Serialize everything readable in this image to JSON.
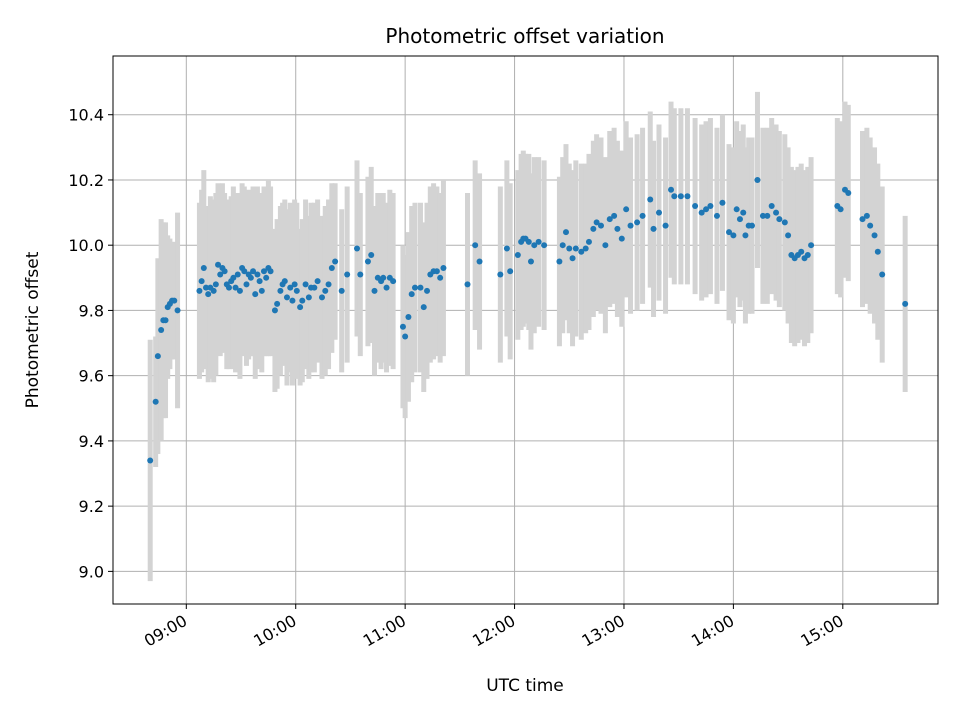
{
  "chart_data": {
    "type": "scatter",
    "title": "Photometric offset variation",
    "xlabel": "UTC time",
    "ylabel": "Photometric offset",
    "x_unit": "hours (UTC)",
    "xlim": [
      8.33,
      15.87
    ],
    "ylim": [
      8.9,
      10.58
    ],
    "grid": true,
    "x_ticks": [
      {
        "value": 9,
        "label": "09:00"
      },
      {
        "value": 10,
        "label": "10:00"
      },
      {
        "value": 11,
        "label": "11:00"
      },
      {
        "value": 12,
        "label": "12:00"
      },
      {
        "value": 13,
        "label": "13:00"
      },
      {
        "value": 14,
        "label": "14:00"
      },
      {
        "value": 15,
        "label": "15:00"
      }
    ],
    "y_ticks": [
      {
        "value": 9.0,
        "label": "9.0"
      },
      {
        "value": 9.2,
        "label": "9.2"
      },
      {
        "value": 9.4,
        "label": "9.4"
      },
      {
        "value": 9.6,
        "label": "9.6"
      },
      {
        "value": 9.8,
        "label": "9.8"
      },
      {
        "value": 10.0,
        "label": "10.0"
      },
      {
        "value": 10.2,
        "label": "10.2"
      },
      {
        "value": 10.4,
        "label": "10.4"
      }
    ],
    "point_color": "#1f77b4",
    "errorbar_color": "#d3d3d3",
    "points": [
      [
        8.67,
        9.34,
        0.37
      ],
      [
        8.72,
        9.52,
        0.2
      ],
      [
        8.74,
        9.66,
        0.3
      ],
      [
        8.77,
        9.74,
        0.34
      ],
      [
        8.79,
        9.77,
        0.3
      ],
      [
        8.81,
        9.77,
        0.3
      ],
      [
        8.83,
        9.81,
        0.22
      ],
      [
        8.85,
        9.82,
        0.2
      ],
      [
        8.87,
        9.83,
        0.18
      ],
      [
        8.89,
        9.83,
        0.18
      ],
      [
        8.92,
        9.8,
        0.3
      ],
      [
        9.12,
        9.86,
        0.27
      ],
      [
        9.14,
        9.89,
        0.28
      ],
      [
        9.16,
        9.93,
        0.3
      ],
      [
        9.18,
        9.87,
        0.25
      ],
      [
        9.2,
        9.85,
        0.27
      ],
      [
        9.22,
        9.87,
        0.28
      ],
      [
        9.25,
        9.86,
        0.28
      ],
      [
        9.27,
        9.88,
        0.28
      ],
      [
        9.29,
        9.94,
        0.25
      ],
      [
        9.31,
        9.91,
        0.25
      ],
      [
        9.33,
        9.93,
        0.26
      ],
      [
        9.35,
        9.92,
        0.24
      ],
      [
        9.37,
        9.88,
        0.26
      ],
      [
        9.39,
        9.87,
        0.25
      ],
      [
        9.41,
        9.89,
        0.26
      ],
      [
        9.43,
        9.9,
        0.28
      ],
      [
        9.45,
        9.87,
        0.26
      ],
      [
        9.47,
        9.91,
        0.25
      ],
      [
        9.49,
        9.86,
        0.27
      ],
      [
        9.51,
        9.93,
        0.26
      ],
      [
        9.53,
        9.92,
        0.26
      ],
      [
        9.55,
        9.88,
        0.25
      ],
      [
        9.57,
        9.91,
        0.26
      ],
      [
        9.59,
        9.9,
        0.24
      ],
      [
        9.61,
        9.92,
        0.26
      ],
      [
        9.63,
        9.85,
        0.26
      ],
      [
        9.65,
        9.91,
        0.27
      ],
      [
        9.67,
        9.89,
        0.27
      ],
      [
        9.69,
        9.86,
        0.25
      ],
      [
        9.71,
        9.92,
        0.26
      ],
      [
        9.73,
        9.9,
        0.24
      ],
      [
        9.75,
        9.93,
        0.27
      ],
      [
        9.77,
        9.92,
        0.26
      ],
      [
        9.81,
        9.8,
        0.25
      ],
      [
        9.83,
        9.82,
        0.26
      ],
      [
        9.86,
        9.86,
        0.26
      ],
      [
        9.88,
        9.88,
        0.25
      ],
      [
        9.9,
        9.89,
        0.25
      ],
      [
        9.92,
        9.84,
        0.27
      ],
      [
        9.95,
        9.87,
        0.26
      ],
      [
        9.97,
        9.83,
        0.26
      ],
      [
        9.99,
        9.88,
        0.26
      ],
      [
        10.01,
        9.86,
        0.27
      ],
      [
        10.04,
        9.81,
        0.24
      ],
      [
        10.06,
        9.83,
        0.25
      ],
      [
        10.09,
        9.88,
        0.26
      ],
      [
        10.12,
        9.84,
        0.25
      ],
      [
        10.14,
        9.87,
        0.26
      ],
      [
        10.17,
        9.87,
        0.26
      ],
      [
        10.2,
        9.89,
        0.25
      ],
      [
        10.24,
        9.84,
        0.25
      ],
      [
        10.27,
        9.86,
        0.26
      ],
      [
        10.3,
        9.88,
        0.26
      ],
      [
        10.33,
        9.93,
        0.26
      ],
      [
        10.36,
        9.95,
        0.24
      ],
      [
        10.42,
        9.86,
        0.25
      ],
      [
        10.47,
        9.91,
        0.27
      ],
      [
        10.56,
        9.99,
        0.27
      ],
      [
        10.59,
        9.91,
        0.25
      ],
      [
        10.66,
        9.95,
        0.26
      ],
      [
        10.69,
        9.97,
        0.27
      ],
      [
        10.72,
        9.86,
        0.26
      ],
      [
        10.75,
        9.9,
        0.26
      ],
      [
        10.78,
        9.89,
        0.27
      ],
      [
        10.8,
        9.9,
        0.26
      ],
      [
        10.83,
        9.87,
        0.26
      ],
      [
        10.86,
        9.9,
        0.27
      ],
      [
        10.89,
        9.89,
        0.27
      ],
      [
        10.98,
        9.75,
        0.25
      ],
      [
        11.0,
        9.72,
        0.25
      ],
      [
        11.03,
        9.78,
        0.26
      ],
      [
        11.06,
        9.85,
        0.27
      ],
      [
        11.09,
        9.87,
        0.26
      ],
      [
        11.14,
        9.87,
        0.26
      ],
      [
        11.17,
        9.81,
        0.26
      ],
      [
        11.2,
        9.86,
        0.27
      ],
      [
        11.23,
        9.91,
        0.27
      ],
      [
        11.26,
        9.92,
        0.27
      ],
      [
        11.29,
        9.92,
        0.26
      ],
      [
        11.32,
        9.9,
        0.26
      ],
      [
        11.35,
        9.93,
        0.27
      ],
      [
        11.57,
        9.88,
        0.28
      ],
      [
        11.64,
        10.0,
        0.26
      ],
      [
        11.68,
        9.95,
        0.27
      ],
      [
        11.87,
        9.91,
        0.27
      ],
      [
        11.93,
        9.99,
        0.27
      ],
      [
        11.96,
        9.92,
        0.27
      ],
      [
        12.03,
        9.97,
        0.26
      ],
      [
        12.06,
        10.01,
        0.27
      ],
      [
        12.08,
        10.02,
        0.27
      ],
      [
        12.1,
        10.02,
        0.26
      ],
      [
        12.13,
        10.01,
        0.27
      ],
      [
        12.15,
        9.95,
        0.27
      ],
      [
        12.18,
        10.0,
        0.27
      ],
      [
        12.22,
        10.01,
        0.26
      ],
      [
        12.27,
        10.0,
        0.26
      ],
      [
        12.41,
        9.95,
        0.26
      ],
      [
        12.44,
        10.0,
        0.27
      ],
      [
        12.47,
        10.04,
        0.27
      ],
      [
        12.5,
        9.99,
        0.26
      ],
      [
        12.53,
        9.96,
        0.27
      ],
      [
        12.56,
        9.99,
        0.27
      ],
      [
        12.61,
        9.98,
        0.27
      ],
      [
        12.65,
        9.99,
        0.26
      ],
      [
        12.68,
        10.01,
        0.27
      ],
      [
        12.72,
        10.05,
        0.27
      ],
      [
        12.75,
        10.07,
        0.27
      ],
      [
        12.79,
        10.06,
        0.27
      ],
      [
        12.83,
        10.0,
        0.27
      ],
      [
        12.87,
        10.08,
        0.27
      ],
      [
        12.91,
        10.09,
        0.27
      ],
      [
        12.94,
        10.05,
        0.27
      ],
      [
        12.98,
        10.02,
        0.27
      ],
      [
        13.02,
        10.11,
        0.27
      ],
      [
        13.06,
        10.06,
        0.27
      ],
      [
        13.12,
        10.07,
        0.27
      ],
      [
        13.17,
        10.09,
        0.27
      ],
      [
        13.24,
        10.14,
        0.27
      ],
      [
        13.27,
        10.05,
        0.27
      ],
      [
        13.32,
        10.1,
        0.27
      ],
      [
        13.38,
        10.06,
        0.27
      ],
      [
        13.43,
        10.17,
        0.27
      ],
      [
        13.46,
        10.15,
        0.27
      ],
      [
        13.52,
        10.15,
        0.27
      ],
      [
        13.58,
        10.15,
        0.27
      ],
      [
        13.65,
        10.12,
        0.27
      ],
      [
        13.71,
        10.1,
        0.27
      ],
      [
        13.75,
        10.11,
        0.27
      ],
      [
        13.79,
        10.12,
        0.27
      ],
      [
        13.85,
        10.09,
        0.27
      ],
      [
        13.9,
        10.13,
        0.27
      ],
      [
        13.96,
        10.04,
        0.27
      ],
      [
        14.0,
        10.03,
        0.27
      ],
      [
        14.03,
        10.11,
        0.27
      ],
      [
        14.06,
        10.08,
        0.27
      ],
      [
        14.09,
        10.1,
        0.27
      ],
      [
        14.11,
        10.03,
        0.27
      ],
      [
        14.14,
        10.06,
        0.27
      ],
      [
        14.17,
        10.06,
        0.27
      ],
      [
        14.22,
        10.2,
        0.27
      ],
      [
        14.27,
        10.09,
        0.27
      ],
      [
        14.31,
        10.09,
        0.27
      ],
      [
        14.35,
        10.12,
        0.27
      ],
      [
        14.39,
        10.1,
        0.27
      ],
      [
        14.42,
        10.08,
        0.27
      ],
      [
        14.47,
        10.07,
        0.27
      ],
      [
        14.5,
        10.03,
        0.27
      ],
      [
        14.53,
        9.97,
        0.27
      ],
      [
        14.56,
        9.96,
        0.27
      ],
      [
        14.59,
        9.97,
        0.27
      ],
      [
        14.62,
        9.98,
        0.27
      ],
      [
        14.65,
        9.96,
        0.27
      ],
      [
        14.68,
        9.97,
        0.27
      ],
      [
        14.71,
        10.0,
        0.27
      ],
      [
        14.95,
        10.12,
        0.27
      ],
      [
        14.98,
        10.11,
        0.27
      ],
      [
        15.02,
        10.17,
        0.27
      ],
      [
        15.05,
        10.16,
        0.27
      ],
      [
        15.18,
        10.08,
        0.27
      ],
      [
        15.22,
        10.09,
        0.27
      ],
      [
        15.25,
        10.06,
        0.27
      ],
      [
        15.29,
        10.03,
        0.27
      ],
      [
        15.32,
        9.98,
        0.27
      ],
      [
        15.36,
        9.91,
        0.27
      ],
      [
        15.57,
        9.82,
        0.27
      ]
    ]
  }
}
